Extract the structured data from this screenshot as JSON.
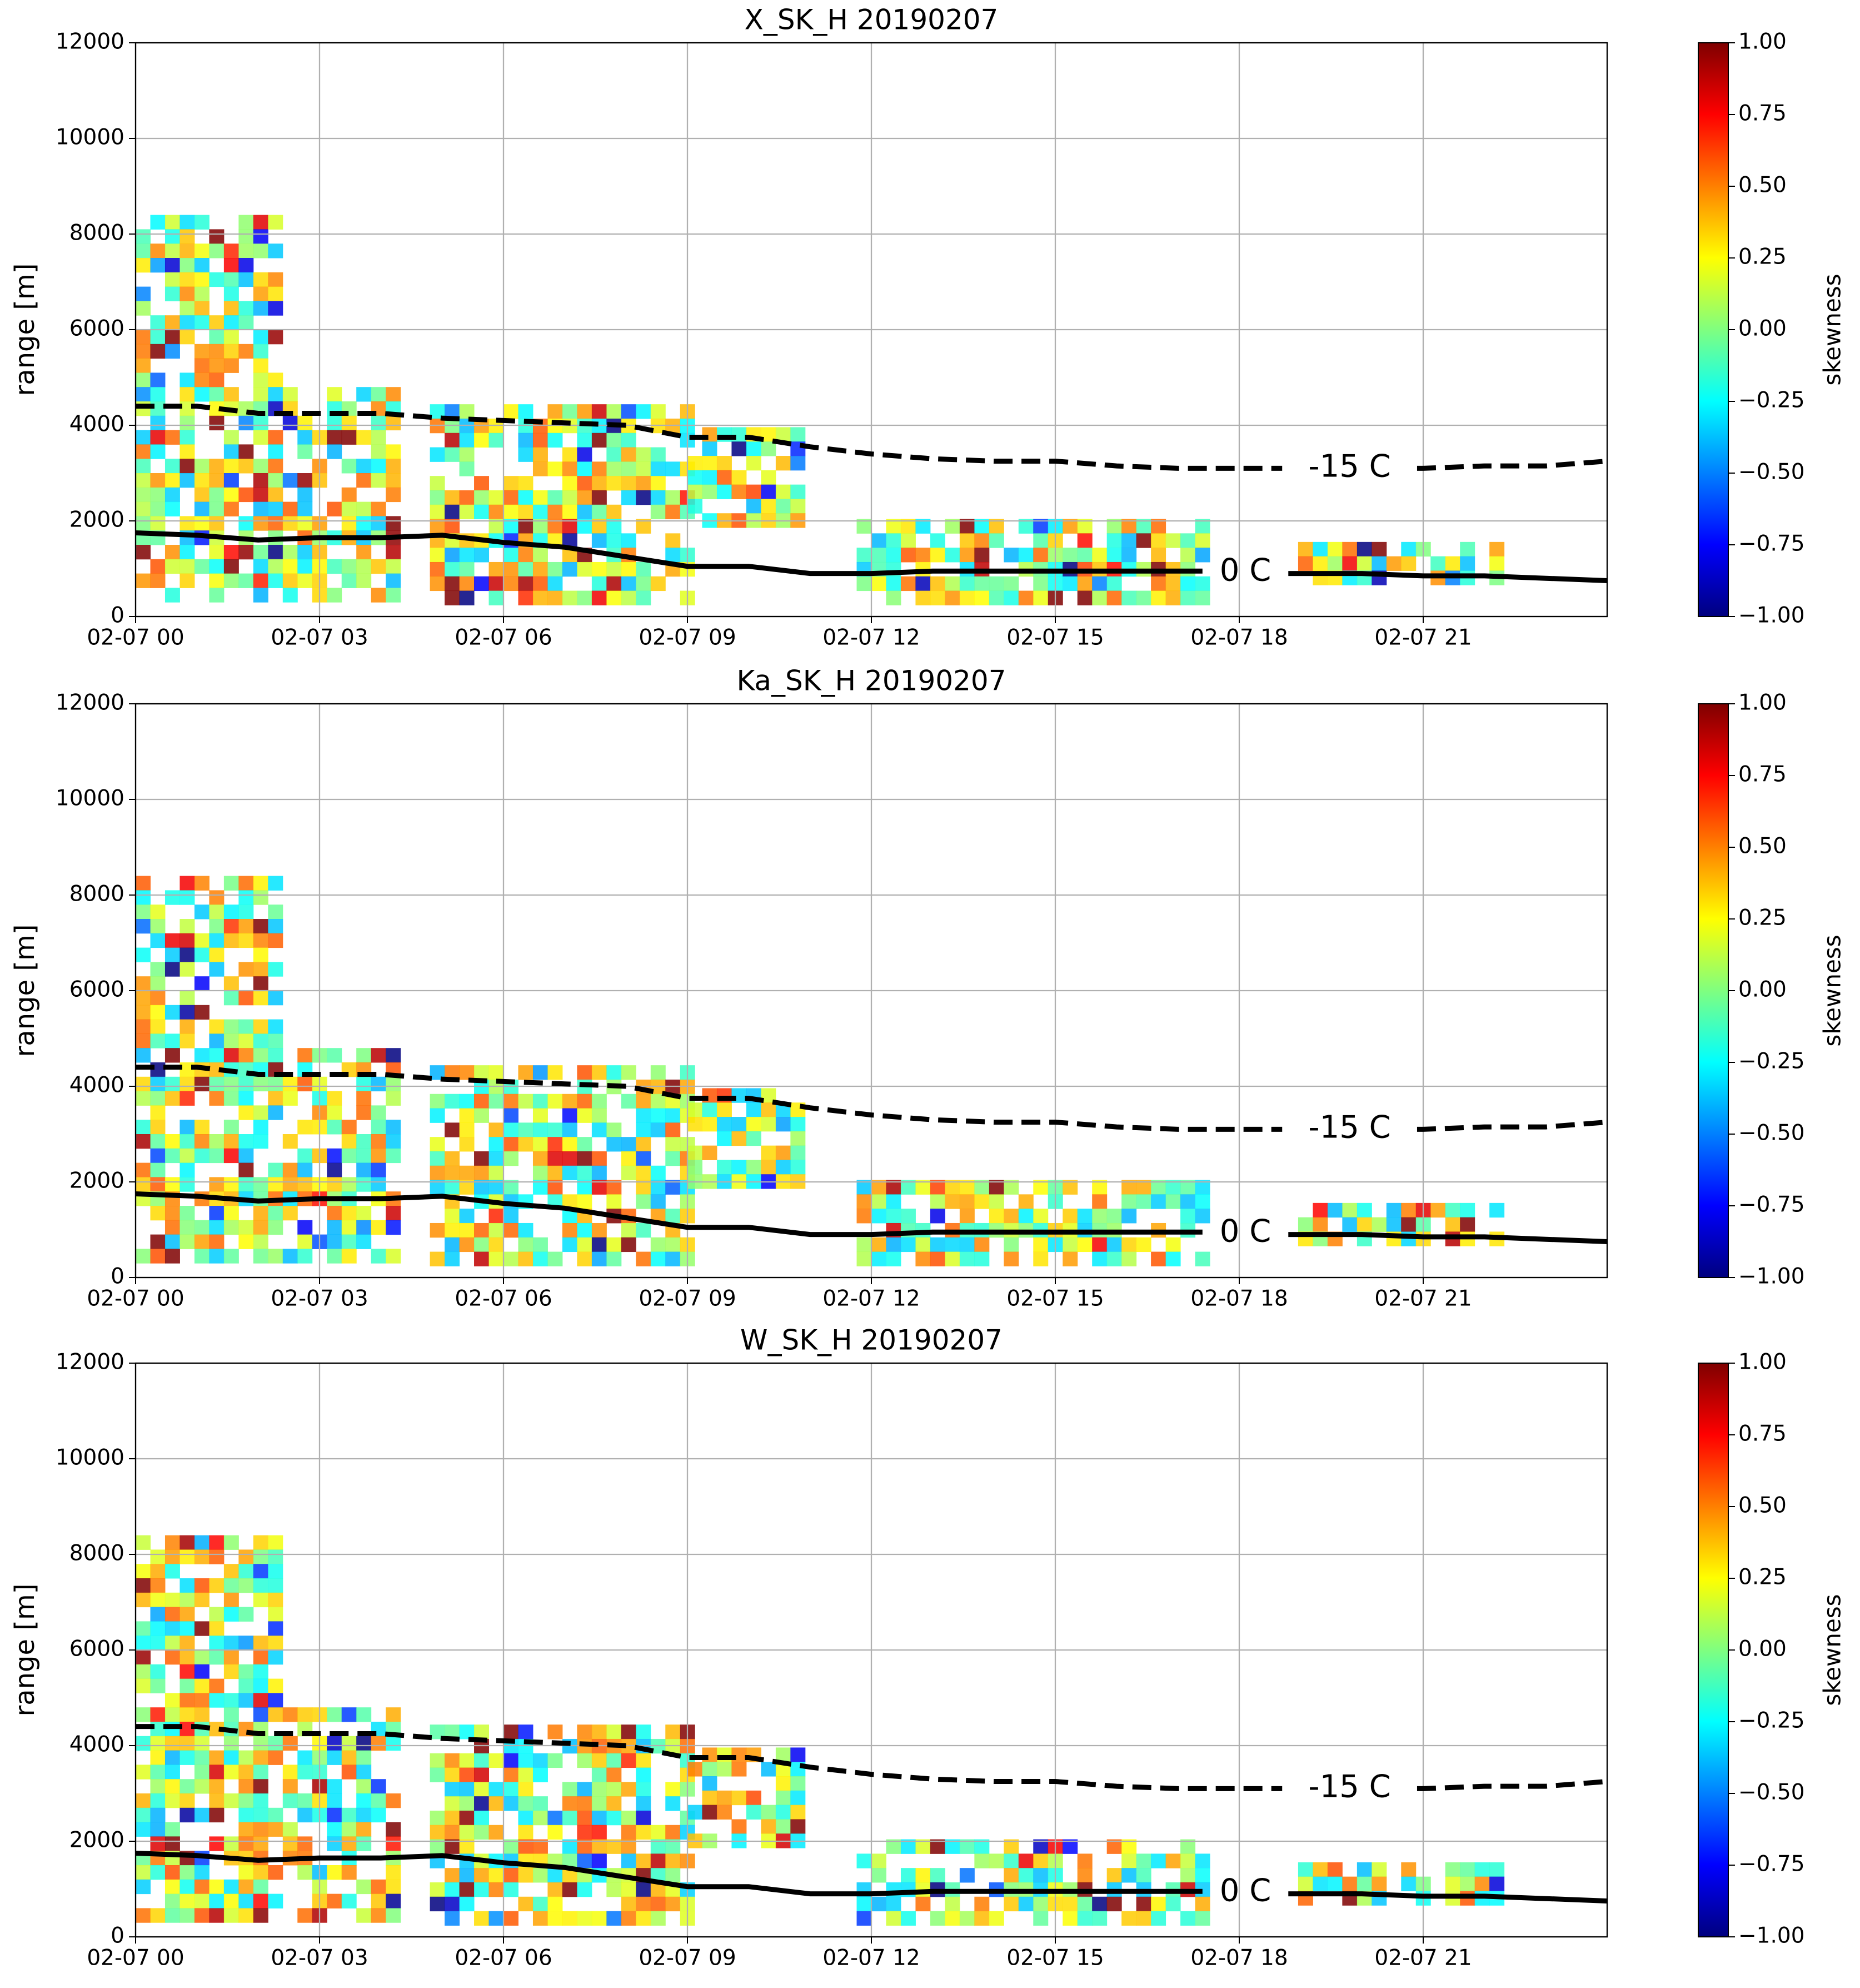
{
  "chart_data": [
    {
      "type": "line",
      "title": "X_SK_H 20190207",
      "y_label": "range [m]",
      "colorbar_label": "skewness",
      "colormap": "jet",
      "xlim": [
        0,
        24
      ],
      "xticks": [
        {
          "value": 0,
          "label": "02-07 00"
        },
        {
          "value": 3,
          "label": "02-07 03"
        },
        {
          "value": 6,
          "label": "02-07 06"
        },
        {
          "value": 9,
          "label": "02-07 09"
        },
        {
          "value": 12,
          "label": "02-07 12"
        },
        {
          "value": 15,
          "label": "02-07 15"
        },
        {
          "value": 18,
          "label": "02-07 18"
        },
        {
          "value": 21,
          "label": "02-07 21"
        }
      ],
      "ylim": [
        0,
        12000
      ],
      "yticks": [
        0,
        2000,
        4000,
        6000,
        8000,
        10000,
        12000
      ],
      "grid": true,
      "clim": [
        -1,
        1
      ],
      "cticks": [
        {
          "value": -1,
          "label": "−1.00"
        },
        {
          "value": -0.75,
          "label": "−0.75"
        },
        {
          "value": -0.5,
          "label": "−0.50"
        },
        {
          "value": -0.25,
          "label": "−0.25"
        },
        {
          "value": 0,
          "label": "0.00"
        },
        {
          "value": 0.25,
          "label": "0.25"
        },
        {
          "value": 0.5,
          "label": "0.50"
        },
        {
          "value": 0.75,
          "label": "0.75"
        },
        {
          "value": 1,
          "label": "1.00"
        }
      ],
      "series": [
        {
          "name": "-15 C",
          "color": "#000000",
          "dash": true,
          "x": [
            0,
            1,
            2,
            3,
            4,
            5,
            6,
            7,
            8,
            9,
            10,
            11,
            12,
            13,
            14,
            15,
            16,
            17,
            18,
            18.7,
            19.8,
            20.9,
            21,
            22,
            23,
            24
          ],
          "values": [
            4400,
            4400,
            4250,
            4250,
            4250,
            4150,
            4100,
            4050,
            4000,
            3750,
            3750,
            3550,
            3400,
            3300,
            3250,
            3250,
            3150,
            3100,
            3100,
            3100,
            null,
            3100,
            3100,
            3150,
            3150,
            3250
          ]
        },
        {
          "name": "0 C",
          "color": "#000000",
          "dash": false,
          "x": [
            0,
            1,
            2,
            3,
            4,
            5,
            6,
            7,
            8,
            9,
            10,
            11,
            12,
            13,
            14,
            15,
            16,
            17,
            17.4,
            18.1,
            18.8,
            19,
            20,
            21,
            22,
            23,
            24
          ],
          "values": [
            1750,
            1700,
            1600,
            1650,
            1650,
            1700,
            1550,
            1450,
            1250,
            1050,
            1050,
            900,
            900,
            950,
            950,
            950,
            950,
            950,
            950,
            null,
            900,
            900,
            900,
            850,
            850,
            800,
            750
          ]
        }
      ]
    },
    {
      "type": "line",
      "title": "Ka_SK_H 20190207",
      "y_label": "range [m]",
      "colorbar_label": "skewness",
      "colormap": "jet",
      "xlim": [
        0,
        24
      ],
      "xticks": [
        {
          "value": 0,
          "label": "02-07 00"
        },
        {
          "value": 3,
          "label": "02-07 03"
        },
        {
          "value": 6,
          "label": "02-07 06"
        },
        {
          "value": 9,
          "label": "02-07 09"
        },
        {
          "value": 12,
          "label": "02-07 12"
        },
        {
          "value": 15,
          "label": "02-07 15"
        },
        {
          "value": 18,
          "label": "02-07 18"
        },
        {
          "value": 21,
          "label": "02-07 21"
        }
      ],
      "ylim": [
        0,
        12000
      ],
      "yticks": [
        0,
        2000,
        4000,
        6000,
        8000,
        10000,
        12000
      ],
      "grid": true,
      "clim": [
        -1,
        1
      ],
      "cticks": [
        {
          "value": -1,
          "label": "−1.00"
        },
        {
          "value": -0.75,
          "label": "−0.75"
        },
        {
          "value": -0.5,
          "label": "−0.50"
        },
        {
          "value": -0.25,
          "label": "−0.25"
        },
        {
          "value": 0,
          "label": "0.00"
        },
        {
          "value": 0.25,
          "label": "0.25"
        },
        {
          "value": 0.5,
          "label": "0.50"
        },
        {
          "value": 0.75,
          "label": "0.75"
        },
        {
          "value": 1,
          "label": "1.00"
        }
      ],
      "series": [
        {
          "name": "-15 C",
          "color": "#000000",
          "dash": true,
          "x": [
            0,
            1,
            2,
            3,
            4,
            5,
            6,
            7,
            8,
            9,
            10,
            11,
            12,
            13,
            14,
            15,
            16,
            17,
            18,
            18.7,
            19.8,
            20.9,
            21,
            22,
            23,
            24
          ],
          "values": [
            4400,
            4400,
            4250,
            4250,
            4250,
            4150,
            4100,
            4050,
            4000,
            3750,
            3750,
            3550,
            3400,
            3300,
            3250,
            3250,
            3150,
            3100,
            3100,
            3100,
            null,
            3100,
            3100,
            3150,
            3150,
            3250
          ]
        },
        {
          "name": "0 C",
          "color": "#000000",
          "dash": false,
          "x": [
            0,
            1,
            2,
            3,
            4,
            5,
            6,
            7,
            8,
            9,
            10,
            11,
            12,
            13,
            14,
            15,
            16,
            17,
            17.4,
            18.1,
            18.8,
            19,
            20,
            21,
            22,
            23,
            24
          ],
          "values": [
            1750,
            1700,
            1600,
            1650,
            1650,
            1700,
            1550,
            1450,
            1250,
            1050,
            1050,
            900,
            900,
            950,
            950,
            950,
            950,
            950,
            950,
            null,
            900,
            900,
            900,
            850,
            850,
            800,
            750
          ]
        }
      ]
    },
    {
      "type": "line",
      "title": "W_SK_H 20190207",
      "y_label": "range [m]",
      "colorbar_label": "skewness",
      "colormap": "jet",
      "xlim": [
        0,
        24
      ],
      "xticks": [
        {
          "value": 0,
          "label": "02-07 00"
        },
        {
          "value": 3,
          "label": "02-07 03"
        },
        {
          "value": 6,
          "label": "02-07 06"
        },
        {
          "value": 9,
          "label": "02-07 09"
        },
        {
          "value": 12,
          "label": "02-07 12"
        },
        {
          "value": 15,
          "label": "02-07 15"
        },
        {
          "value": 18,
          "label": "02-07 18"
        },
        {
          "value": 21,
          "label": "02-07 21"
        }
      ],
      "ylim": [
        0,
        12000
      ],
      "yticks": [
        0,
        2000,
        4000,
        6000,
        8000,
        10000,
        12000
      ],
      "grid": true,
      "clim": [
        -1,
        1
      ],
      "cticks": [
        {
          "value": -1,
          "label": "−1.00"
        },
        {
          "value": -0.75,
          "label": "−0.75"
        },
        {
          "value": -0.5,
          "label": "−0.50"
        },
        {
          "value": -0.25,
          "label": "−0.25"
        },
        {
          "value": 0,
          "label": "0.00"
        },
        {
          "value": 0.25,
          "label": "0.25"
        },
        {
          "value": 0.5,
          "label": "0.50"
        },
        {
          "value": 0.75,
          "label": "0.75"
        },
        {
          "value": 1,
          "label": "1.00"
        }
      ],
      "series": [
        {
          "name": "-15 C",
          "color": "#000000",
          "dash": true,
          "x": [
            0,
            1,
            2,
            3,
            4,
            5,
            6,
            7,
            8,
            9,
            10,
            11,
            12,
            13,
            14,
            15,
            16,
            17,
            18,
            18.7,
            19.8,
            20.9,
            21,
            22,
            23,
            24
          ],
          "values": [
            4400,
            4400,
            4250,
            4250,
            4250,
            4150,
            4100,
            4050,
            4000,
            3750,
            3750,
            3550,
            3400,
            3300,
            3250,
            3250,
            3150,
            3100,
            3100,
            3100,
            null,
            3100,
            3100,
            3150,
            3150,
            3250
          ]
        },
        {
          "name": "0 C",
          "color": "#000000",
          "dash": false,
          "x": [
            0,
            1,
            2,
            3,
            4,
            5,
            6,
            7,
            8,
            9,
            10,
            11,
            12,
            13,
            14,
            15,
            16,
            17,
            17.4,
            18.1,
            18.8,
            19,
            20,
            21,
            22,
            23,
            24
          ],
          "values": [
            1750,
            1700,
            1600,
            1650,
            1650,
            1700,
            1550,
            1450,
            1250,
            1050,
            1050,
            900,
            900,
            950,
            950,
            950,
            950,
            950,
            950,
            null,
            900,
            900,
            900,
            850,
            850,
            800,
            750
          ]
        }
      ]
    }
  ]
}
